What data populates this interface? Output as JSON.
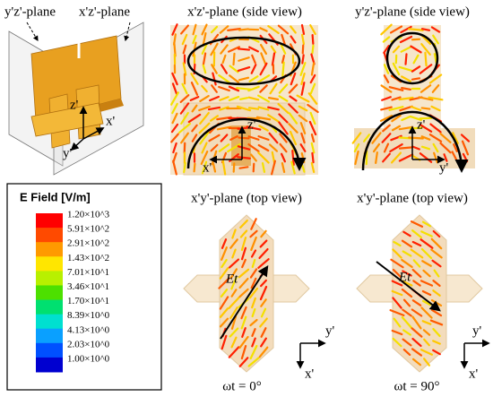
{
  "model": {
    "plane_labels": [
      "y'z'-plane",
      "x'z'-plane"
    ],
    "axes": [
      "z'",
      "x'",
      "y'"
    ]
  },
  "panels": [
    {
      "title": "x'z'-plane (side view)",
      "axes": [
        "z'",
        "x'"
      ]
    },
    {
      "title": "y'z'-plane (side view)",
      "axes": [
        "z'",
        "y'"
      ]
    },
    {
      "title": "x'y'-plane (top view)",
      "axes": [
        "y'",
        "x'"
      ],
      "field_label": "Et",
      "caption": "ωt = 0°"
    },
    {
      "title": "x'y'-plane (top view)",
      "axes": [
        "y'",
        "x'"
      ],
      "field_label": "Et",
      "caption": "ωt = 90°"
    }
  ],
  "legend": {
    "title": "E Field [V/m]",
    "items": [
      {
        "label": "1.20×10^3",
        "color": "#ff0000"
      },
      {
        "label": "5.91×10^2",
        "color": "#ff4a00"
      },
      {
        "label": "2.91×10^2",
        "color": "#ff9a00"
      },
      {
        "label": "1.43×10^2",
        "color": "#ffe600"
      },
      {
        "label": "7.01×10^1",
        "color": "#b8f000"
      },
      {
        "label": "3.46×10^1",
        "color": "#4de000"
      },
      {
        "label": "1.70×10^1",
        "color": "#00e070"
      },
      {
        "label": "8.39×10^0",
        "color": "#00e0d0"
      },
      {
        "label": "4.13×10^0",
        "color": "#0aa0ff"
      },
      {
        "label": "2.03×10^0",
        "color": "#0050ff"
      },
      {
        "label": "1.00×10^0",
        "color": "#0000d0"
      }
    ]
  }
}
